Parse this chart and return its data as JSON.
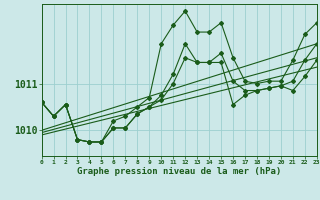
{
  "xlabel": "Graphe pression niveau de la mer (hPa)",
  "background_color": "#cce8e8",
  "line_color": "#1a5c1a",
  "grid_color": "#9dcfcf",
  "hours": [
    0,
    1,
    2,
    3,
    4,
    5,
    6,
    7,
    8,
    9,
    10,
    11,
    12,
    13,
    14,
    15,
    16,
    17,
    18,
    19,
    20,
    21,
    22,
    23
  ],
  "series_main": [
    1010.6,
    1010.3,
    1010.55,
    1009.8,
    1009.75,
    1009.75,
    1010.05,
    1010.05,
    1010.35,
    1010.5,
    1010.75,
    1011.2,
    1011.85,
    1011.45,
    1011.45,
    1011.65,
    1011.05,
    1010.85,
    1010.85,
    1010.9,
    1010.95,
    1011.05,
    1011.5,
    1011.85
  ],
  "series_high": [
    1010.6,
    1010.3,
    1010.55,
    1009.8,
    1009.75,
    1009.75,
    1010.2,
    1010.3,
    1010.5,
    1010.7,
    1011.85,
    1012.25,
    1012.55,
    1012.1,
    1012.1,
    1012.3,
    1011.55,
    1011.05,
    1011.0,
    1011.05,
    1011.05,
    1011.5,
    1012.05,
    1012.3
  ],
  "series_low": [
    1010.6,
    1010.3,
    1010.55,
    1009.8,
    1009.75,
    1009.75,
    1010.05,
    1010.05,
    1010.35,
    1010.5,
    1010.65,
    1011.0,
    1011.55,
    1011.45,
    1011.45,
    1011.45,
    1010.55,
    1010.75,
    1010.85,
    1010.9,
    1010.95,
    1010.85,
    1011.15,
    1011.5
  ],
  "trend_main": [
    1009.95,
    1011.55
  ],
  "trend_high": [
    1010.0,
    1011.85
  ],
  "trend_low": [
    1009.9,
    1011.35
  ],
  "trend_x": [
    0,
    23
  ],
  "ylim": [
    1009.45,
    1012.7
  ],
  "yticks": [
    1010,
    1011
  ],
  "xlim": [
    0,
    23
  ]
}
